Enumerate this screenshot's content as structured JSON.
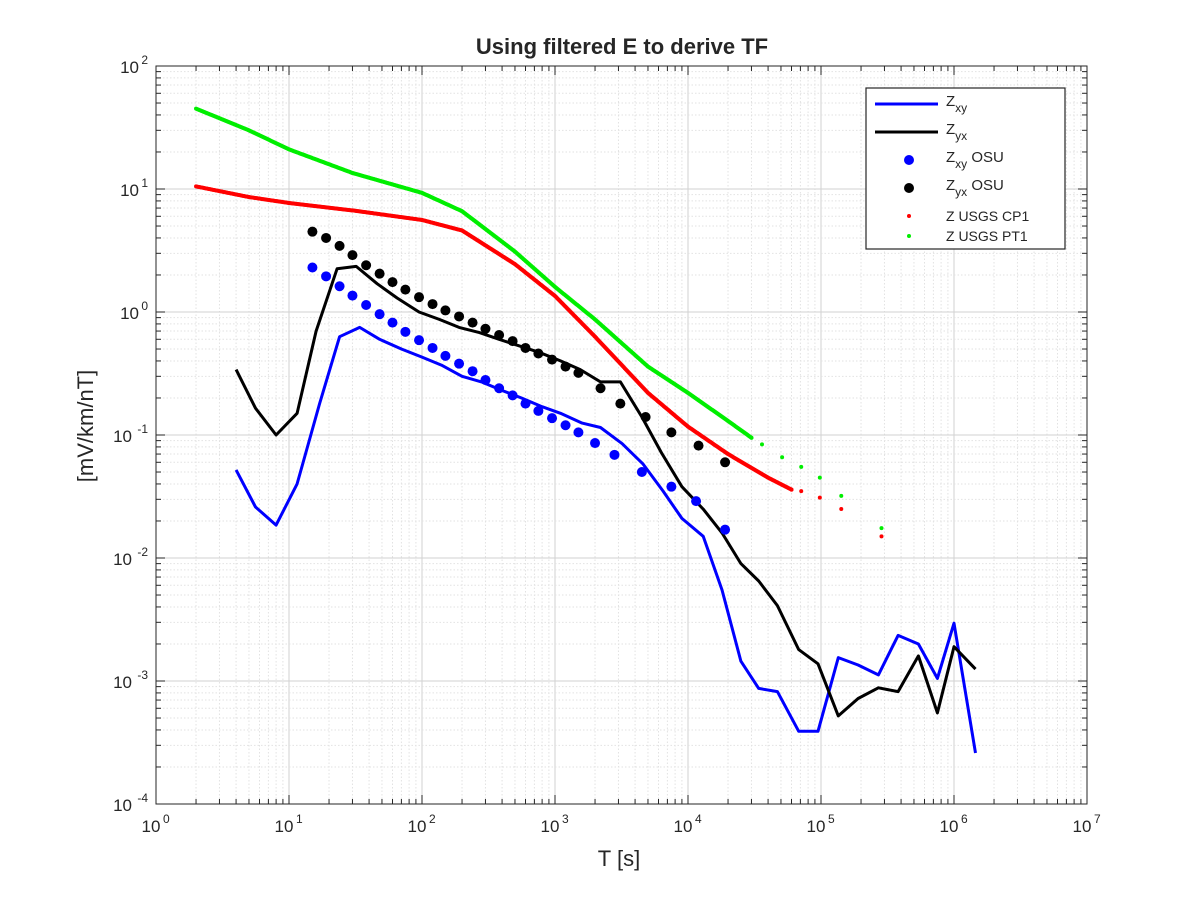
{
  "chart_data": {
    "type": "line",
    "title": "Using filtered E to derive TF",
    "xlabel": "T [s]",
    "ylabel": "[mV/km/nT]",
    "xscale": "log",
    "yscale": "log",
    "xlim": [
      1,
      10000000
    ],
    "ylim": [
      0.0001,
      100
    ],
    "grid": true,
    "minor_grid": true,
    "legend_position": "top-right",
    "x_tick_labels": [
      {
        "exp": "0",
        "value": 1
      },
      {
        "exp": "1",
        "value": 10
      },
      {
        "exp": "2",
        "value": 100
      },
      {
        "exp": "3",
        "value": 1000
      },
      {
        "exp": "4",
        "value": 10000
      },
      {
        "exp": "5",
        "value": 100000
      },
      {
        "exp": "6",
        "value": 1000000
      },
      {
        "exp": "7",
        "value": 10000000
      }
    ],
    "y_tick_labels": [
      {
        "exp": "-4",
        "value": 0.0001
      },
      {
        "exp": "-3",
        "value": 0.001
      },
      {
        "exp": "-2",
        "value": 0.01
      },
      {
        "exp": "-1",
        "value": 0.1
      },
      {
        "exp": "0",
        "value": 1
      },
      {
        "exp": "1",
        "value": 10
      },
      {
        "exp": "2",
        "value": 100
      }
    ],
    "tick_base": "10",
    "series": [
      {
        "name_main": "Z",
        "name_sub": "xy",
        "name_suffix": "",
        "style": "line",
        "color": "#0000ff",
        "points": [
          [
            4,
            0.052
          ],
          [
            5.6,
            0.026
          ],
          [
            8,
            0.0185
          ],
          [
            11.5,
            0.04
          ],
          [
            17,
            0.18
          ],
          [
            24,
            0.63
          ],
          [
            34,
            0.75
          ],
          [
            48,
            0.6
          ],
          [
            70,
            0.5
          ],
          [
            100,
            0.43
          ],
          [
            140,
            0.37
          ],
          [
            200,
            0.3
          ],
          [
            280,
            0.27
          ],
          [
            400,
            0.23
          ],
          [
            560,
            0.2
          ],
          [
            800,
            0.17
          ],
          [
            1100,
            0.15
          ],
          [
            1600,
            0.125
          ],
          [
            2200,
            0.115
          ],
          [
            3200,
            0.085
          ],
          [
            4600,
            0.058
          ],
          [
            6500,
            0.035
          ],
          [
            9000,
            0.021
          ],
          [
            13000,
            0.015
          ],
          [
            18000,
            0.0055
          ],
          [
            25000,
            0.00145
          ],
          [
            34000,
            0.00087
          ],
          [
            47000,
            0.00082
          ],
          [
            68000,
            0.00039
          ],
          [
            95000,
            0.00039
          ],
          [
            135000,
            0.00155
          ],
          [
            190000,
            0.00135
          ],
          [
            270000,
            0.00112
          ],
          [
            380000,
            0.00235
          ],
          [
            540000,
            0.002
          ],
          [
            750000,
            0.00105
          ],
          [
            1000000,
            0.00295
          ],
          [
            1450000,
            0.00026
          ]
        ]
      },
      {
        "name_main": "Z",
        "name_sub": "yx",
        "name_suffix": "",
        "style": "line",
        "color": "#000000",
        "points": [
          [
            4,
            0.34
          ],
          [
            5.6,
            0.165
          ],
          [
            8,
            0.1
          ],
          [
            11.5,
            0.15
          ],
          [
            16,
            0.7
          ],
          [
            23,
            2.25
          ],
          [
            32,
            2.35
          ],
          [
            46,
            1.7
          ],
          [
            65,
            1.3
          ],
          [
            95,
            1.0
          ],
          [
            135,
            0.87
          ],
          [
            190,
            0.75
          ],
          [
            270,
            0.68
          ],
          [
            380,
            0.6
          ],
          [
            540,
            0.53
          ],
          [
            760,
            0.47
          ],
          [
            1100,
            0.4
          ],
          [
            1550,
            0.34
          ],
          [
            2200,
            0.27
          ],
          [
            3100,
            0.27
          ],
          [
            4500,
            0.14
          ],
          [
            6300,
            0.072
          ],
          [
            9000,
            0.038
          ],
          [
            13000,
            0.025
          ],
          [
            18000,
            0.016
          ],
          [
            25000,
            0.009
          ],
          [
            34000,
            0.0065
          ],
          [
            47000,
            0.0041
          ],
          [
            68000,
            0.0018
          ],
          [
            95000,
            0.00138
          ],
          [
            135000,
            0.00052
          ],
          [
            190000,
            0.00072
          ],
          [
            270000,
            0.00088
          ],
          [
            380000,
            0.00082
          ],
          [
            540000,
            0.0016
          ],
          [
            750000,
            0.00055
          ],
          [
            1000000,
            0.0019
          ],
          [
            1450000,
            0.00125
          ]
        ]
      },
      {
        "name_main": "Z",
        "name_sub": "xy",
        "name_suffix": " OSU",
        "style": "dots",
        "color": "#0000ff",
        "dot_radius": 5,
        "points": [
          [
            15,
            2.3
          ],
          [
            19,
            1.95
          ],
          [
            24,
            1.62
          ],
          [
            30,
            1.36
          ],
          [
            38,
            1.14
          ],
          [
            48,
            0.96
          ],
          [
            60,
            0.82
          ],
          [
            75,
            0.69
          ],
          [
            95,
            0.59
          ],
          [
            120,
            0.51
          ],
          [
            150,
            0.44
          ],
          [
            190,
            0.38
          ],
          [
            240,
            0.33
          ],
          [
            300,
            0.28
          ],
          [
            380,
            0.24
          ],
          [
            480,
            0.21
          ],
          [
            600,
            0.18
          ],
          [
            750,
            0.157
          ],
          [
            950,
            0.137
          ],
          [
            1200,
            0.12
          ],
          [
            1500,
            0.105
          ],
          [
            2000,
            0.086
          ],
          [
            2800,
            0.069
          ],
          [
            4500,
            0.05
          ],
          [
            7500,
            0.038
          ],
          [
            11500,
            0.029
          ],
          [
            19000,
            0.017
          ]
        ]
      },
      {
        "name_main": "Z",
        "name_sub": "yx",
        "name_suffix": " OSU",
        "style": "dots",
        "color": "#000000",
        "dot_radius": 5,
        "points": [
          [
            15,
            4.5
          ],
          [
            19,
            4.0
          ],
          [
            24,
            3.45
          ],
          [
            30,
            2.9
          ],
          [
            38,
            2.4
          ],
          [
            48,
            2.05
          ],
          [
            60,
            1.75
          ],
          [
            75,
            1.52
          ],
          [
            95,
            1.32
          ],
          [
            120,
            1.16
          ],
          [
            150,
            1.03
          ],
          [
            190,
            0.92
          ],
          [
            240,
            0.82
          ],
          [
            300,
            0.73
          ],
          [
            380,
            0.65
          ],
          [
            480,
            0.58
          ],
          [
            600,
            0.51
          ],
          [
            750,
            0.46
          ],
          [
            950,
            0.41
          ],
          [
            1200,
            0.36
          ],
          [
            1500,
            0.32
          ],
          [
            2200,
            0.24
          ],
          [
            3100,
            0.18
          ],
          [
            4800,
            0.14
          ],
          [
            7500,
            0.105
          ],
          [
            12000,
            0.082
          ],
          [
            19000,
            0.06
          ]
        ]
      },
      {
        "name_main": "Z USGS CP1",
        "name_sub": "",
        "name_suffix": "",
        "style": "dense",
        "color": "#ff0000",
        "dot_radius": 2,
        "anchors": [
          [
            2,
            10.5
          ],
          [
            5,
            8.6
          ],
          [
            10,
            7.7
          ],
          [
            30,
            6.7
          ],
          [
            100,
            5.6
          ],
          [
            200,
            4.6
          ],
          [
            500,
            2.45
          ],
          [
            1000,
            1.35
          ],
          [
            2000,
            0.63
          ],
          [
            5000,
            0.22
          ],
          [
            10000,
            0.117
          ],
          [
            20000,
            0.07
          ],
          [
            40000,
            0.045
          ],
          [
            60000,
            0.036
          ]
        ],
        "extra_points": [
          [
            71000,
            0.035
          ],
          [
            98000,
            0.031
          ],
          [
            142000,
            0.025
          ],
          [
            285000,
            0.015
          ]
        ]
      },
      {
        "name_main": "Z USGS PT1",
        "name_sub": "",
        "name_suffix": "",
        "style": "dense",
        "color": "#00ee00",
        "dot_radius": 2,
        "anchors": [
          [
            2,
            45
          ],
          [
            5,
            30
          ],
          [
            10,
            21
          ],
          [
            30,
            13.5
          ],
          [
            100,
            9.3
          ],
          [
            200,
            6.6
          ],
          [
            500,
            3.1
          ],
          [
            1000,
            1.6
          ],
          [
            2000,
            0.87
          ],
          [
            5000,
            0.36
          ],
          [
            10000,
            0.22
          ],
          [
            20000,
            0.13
          ],
          [
            30000,
            0.095
          ]
        ],
        "extra_points": [
          [
            36000,
            0.084
          ],
          [
            51000,
            0.066
          ],
          [
            71000,
            0.055
          ],
          [
            98000,
            0.045
          ],
          [
            142000,
            0.032
          ],
          [
            285000,
            0.0175
          ]
        ]
      }
    ]
  }
}
